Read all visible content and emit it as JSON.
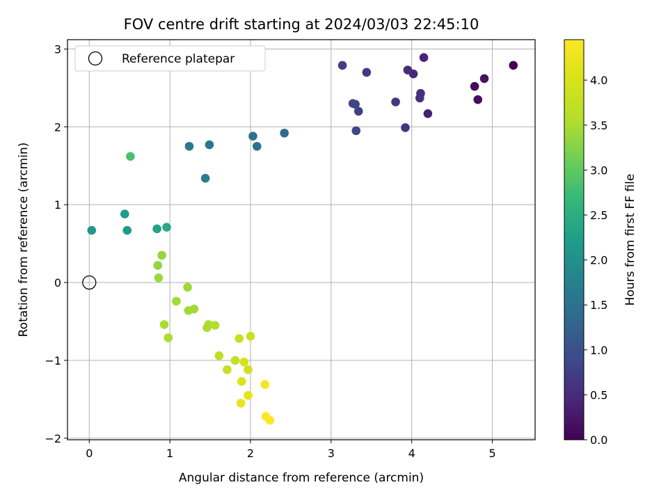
{
  "chart_data": {
    "type": "scatter",
    "title": "FOV centre drift starting at 2024/03/03 22:45:10",
    "xlabel": "Angular distance from reference (arcmin)",
    "ylabel": "Rotation from reference (arcmin)",
    "xlim": [
      -0.27,
      5.53
    ],
    "ylim": [
      -2.02,
      3.12
    ],
    "xticks": [
      0,
      1,
      2,
      3,
      4,
      5
    ],
    "yticks": [
      -2,
      -1,
      0,
      1,
      2,
      3
    ],
    "xtick_labels": [
      "0",
      "1",
      "2",
      "3",
      "4",
      "5"
    ],
    "ytick_labels": [
      "−2",
      "−1",
      "0",
      "1",
      "2",
      "3"
    ],
    "grid": true,
    "legend": {
      "position": "top-left",
      "entries": [
        {
          "label": "Reference platepar",
          "marker": "open-circle",
          "x": 0,
          "y": 0
        }
      ]
    },
    "colorbar": {
      "label": "Hours from first FF file",
      "colormap": "viridis",
      "range": [
        0,
        4.45
      ],
      "ticks": [
        0.0,
        0.5,
        1.0,
        1.5,
        2.0,
        2.5,
        3.0,
        3.5,
        4.0
      ],
      "tick_labels": [
        "0.0",
        "0.5",
        "1.0",
        "1.5",
        "2.0",
        "2.5",
        "3.0",
        "3.5",
        "4.0"
      ]
    },
    "points": [
      {
        "x": 5.26,
        "y": 2.79,
        "c": 0.0
      },
      {
        "x": 4.78,
        "y": 2.52,
        "c": 0.1
      },
      {
        "x": 4.82,
        "y": 2.35,
        "c": 0.15
      },
      {
        "x": 4.9,
        "y": 2.62,
        "c": 0.2
      },
      {
        "x": 4.2,
        "y": 2.17,
        "c": 0.35
      },
      {
        "x": 4.15,
        "y": 2.89,
        "c": 0.4
      },
      {
        "x": 4.02,
        "y": 2.68,
        "c": 0.45
      },
      {
        "x": 3.95,
        "y": 2.73,
        "c": 0.5
      },
      {
        "x": 4.11,
        "y": 2.43,
        "c": 0.55
      },
      {
        "x": 4.1,
        "y": 2.37,
        "c": 0.58
      },
      {
        "x": 3.92,
        "y": 1.99,
        "c": 0.62
      },
      {
        "x": 3.8,
        "y": 2.32,
        "c": 0.66
      },
      {
        "x": 3.44,
        "y": 2.7,
        "c": 0.7
      },
      {
        "x": 3.14,
        "y": 2.79,
        "c": 0.75
      },
      {
        "x": 3.34,
        "y": 2.2,
        "c": 0.78
      },
      {
        "x": 3.3,
        "y": 2.29,
        "c": 0.82
      },
      {
        "x": 3.27,
        "y": 2.3,
        "c": 0.85
      },
      {
        "x": 3.31,
        "y": 1.95,
        "c": 0.88
      },
      {
        "x": 2.42,
        "y": 1.92,
        "c": 1.35
      },
      {
        "x": 2.03,
        "y": 1.88,
        "c": 1.45
      },
      {
        "x": 2.08,
        "y": 1.75,
        "c": 1.5
      },
      {
        "x": 1.49,
        "y": 1.77,
        "c": 1.55
      },
      {
        "x": 1.24,
        "y": 1.75,
        "c": 1.6
      },
      {
        "x": 1.44,
        "y": 1.34,
        "c": 1.7
      },
      {
        "x": 0.03,
        "y": 0.67,
        "c": 2.15
      },
      {
        "x": 0.44,
        "y": 0.88,
        "c": 2.2
      },
      {
        "x": 0.47,
        "y": 0.67,
        "c": 2.2
      },
      {
        "x": 0.84,
        "y": 0.69,
        "c": 2.3
      },
      {
        "x": 0.96,
        "y": 0.71,
        "c": 2.4
      },
      {
        "x": 0.51,
        "y": 1.62,
        "c": 2.85
      },
      {
        "x": 0.9,
        "y": 0.35,
        "c": 3.35
      },
      {
        "x": 0.85,
        "y": 0.22,
        "c": 3.35
      },
      {
        "x": 0.86,
        "y": 0.06,
        "c": 3.4
      },
      {
        "x": 1.22,
        "y": -0.06,
        "c": 3.42
      },
      {
        "x": 1.08,
        "y": -0.24,
        "c": 3.45
      },
      {
        "x": 1.23,
        "y": -0.36,
        "c": 3.45
      },
      {
        "x": 1.3,
        "y": -0.34,
        "c": 3.45
      },
      {
        "x": 0.93,
        "y": -0.54,
        "c": 3.5
      },
      {
        "x": 0.98,
        "y": -0.71,
        "c": 3.5
      },
      {
        "x": 1.46,
        "y": -0.58,
        "c": 3.5
      },
      {
        "x": 1.48,
        "y": -0.54,
        "c": 3.5
      },
      {
        "x": 1.56,
        "y": -0.55,
        "c": 3.55
      },
      {
        "x": 1.61,
        "y": -0.94,
        "c": 3.7
      },
      {
        "x": 1.71,
        "y": -1.12,
        "c": 3.75
      },
      {
        "x": 1.81,
        "y": -1.0,
        "c": 3.75
      },
      {
        "x": 1.86,
        "y": -0.72,
        "c": 3.8
      },
      {
        "x": 2.0,
        "y": -0.69,
        "c": 3.8
      },
      {
        "x": 1.92,
        "y": -1.02,
        "c": 3.95
      },
      {
        "x": 1.97,
        "y": -1.12,
        "c": 3.85
      },
      {
        "x": 1.89,
        "y": -1.27,
        "c": 4.05
      },
      {
        "x": 1.97,
        "y": -1.45,
        "c": 4.15
      },
      {
        "x": 1.88,
        "y": -1.55,
        "c": 4.2
      },
      {
        "x": 2.18,
        "y": -1.31,
        "c": 4.35
      },
      {
        "x": 2.19,
        "y": -1.72,
        "c": 4.42
      },
      {
        "x": 2.24,
        "y": -1.77,
        "c": 4.45
      }
    ]
  }
}
